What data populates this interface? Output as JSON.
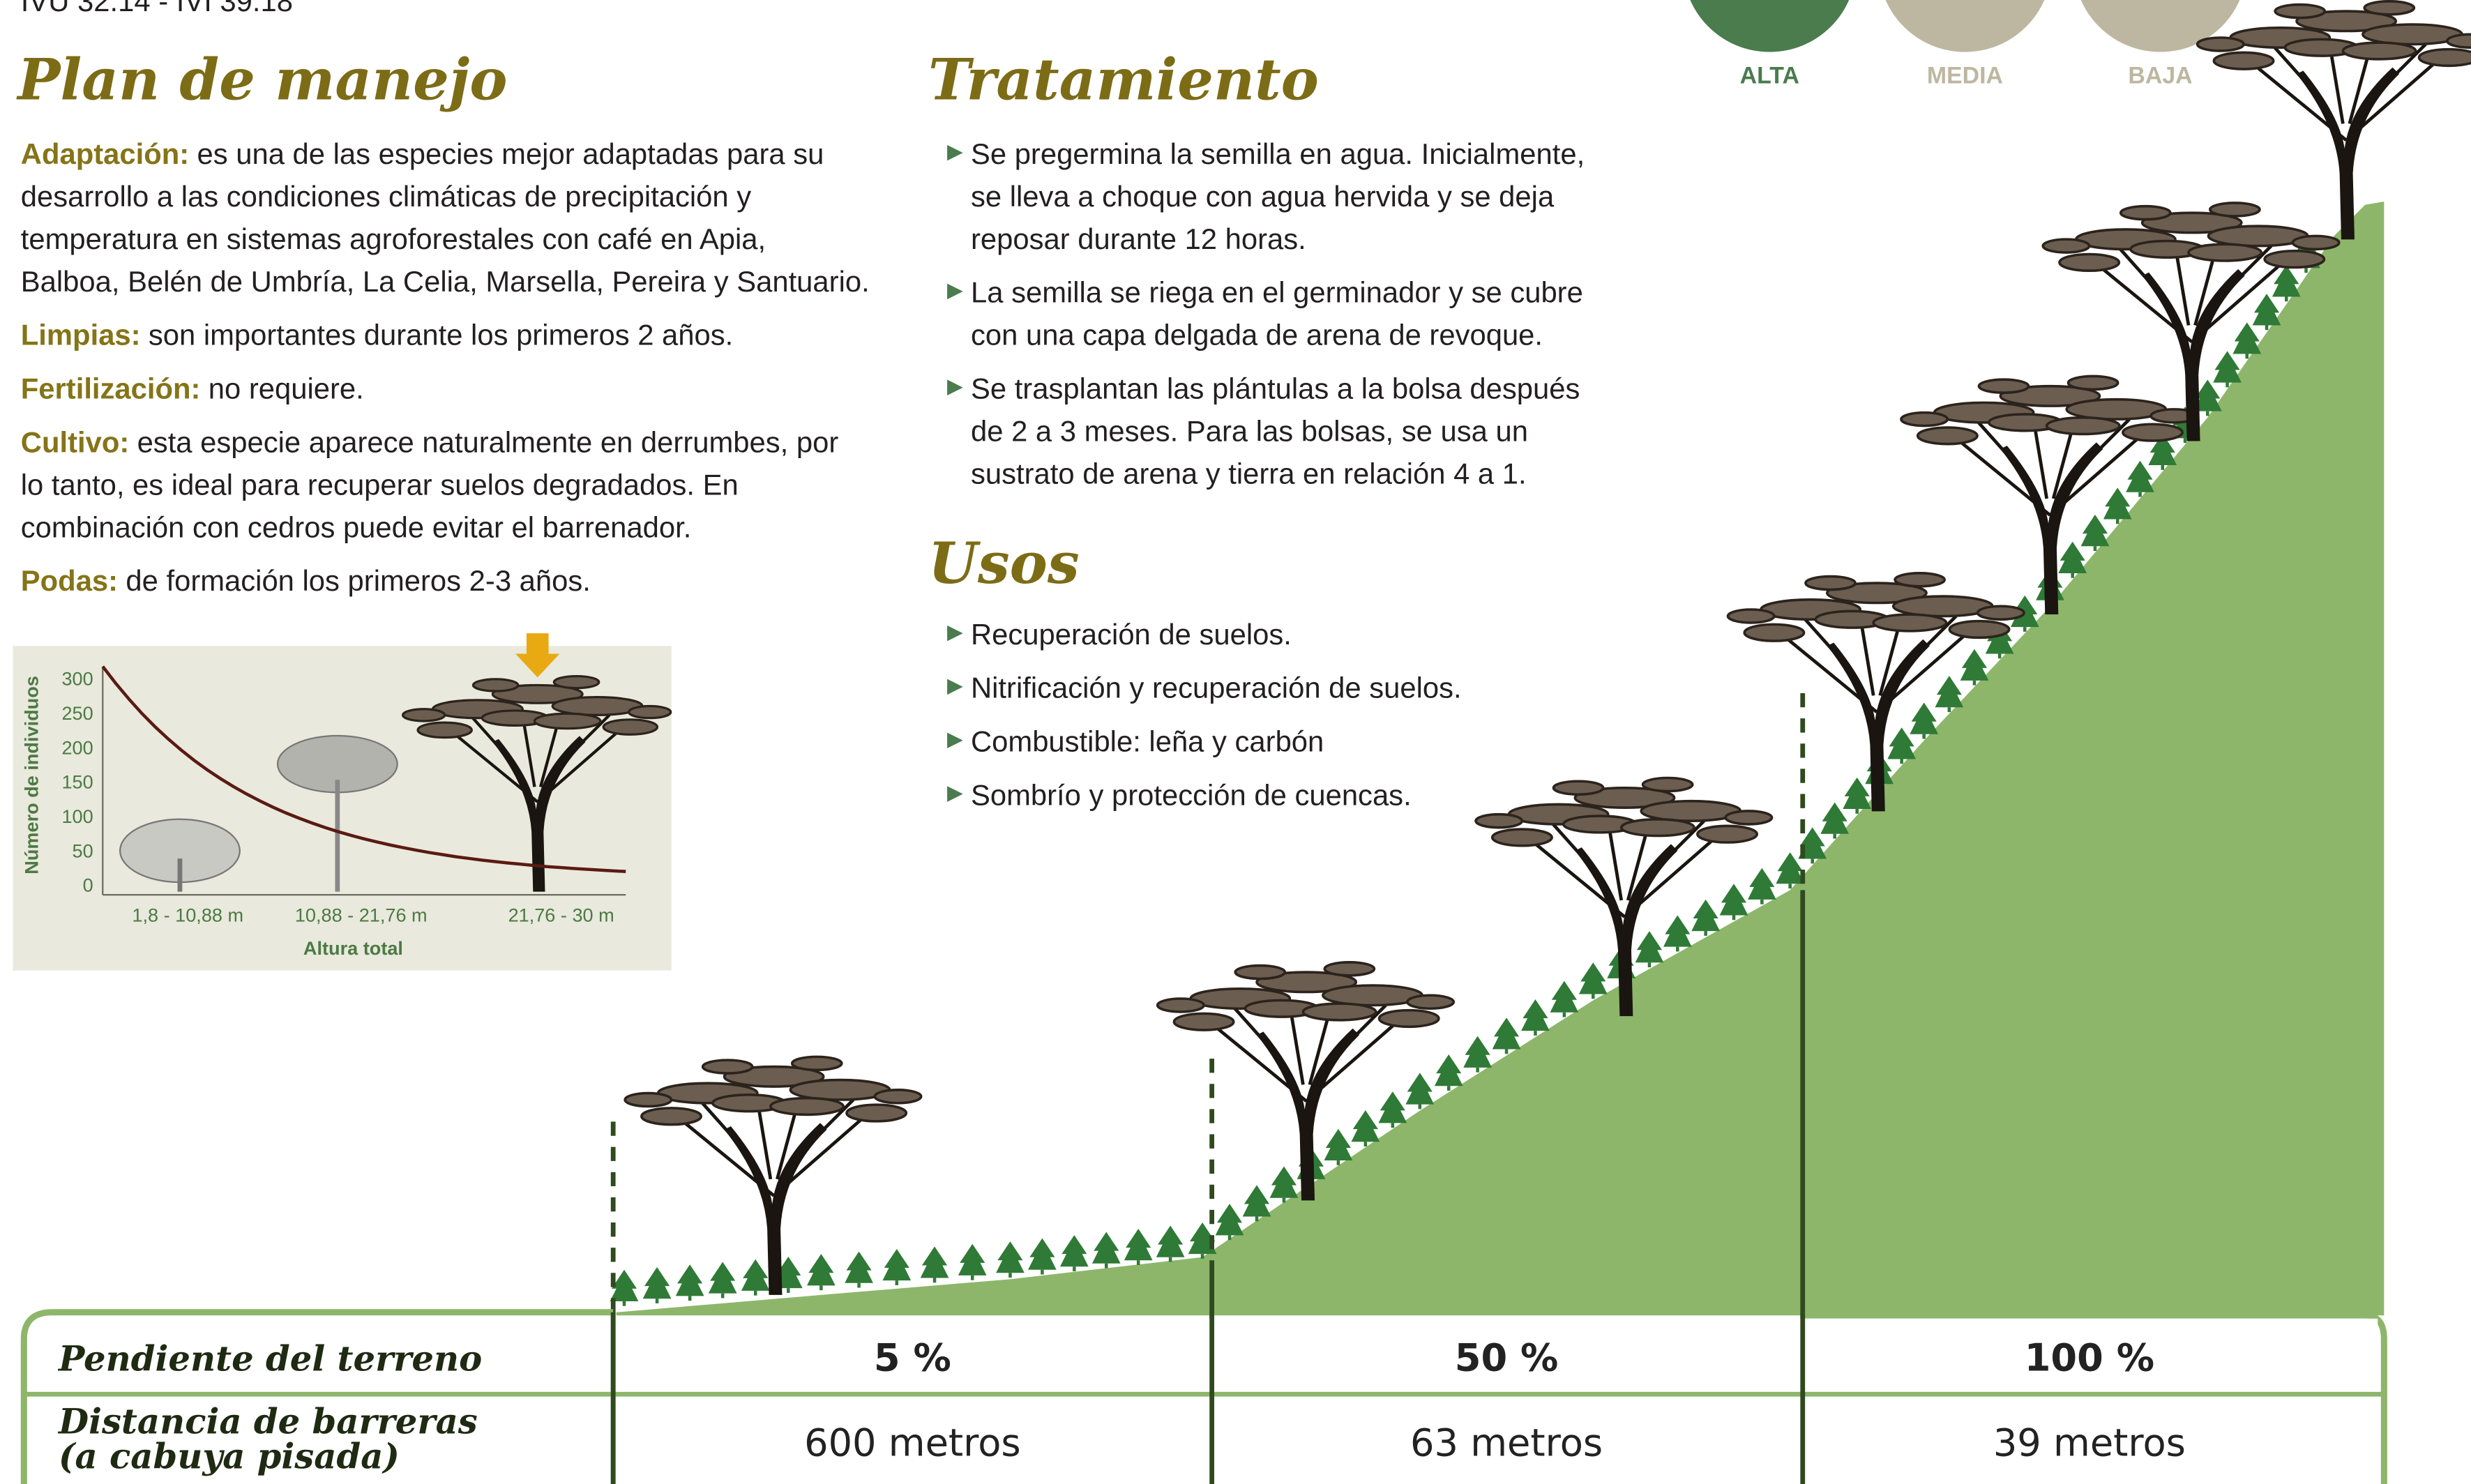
{
  "header": {
    "code": "IVU 32.14 - IVI 39.18"
  },
  "legend": [
    "ALTA",
    "MEDIA",
    "BAJA"
  ],
  "plan": {
    "title": "Plan de manejo",
    "items": [
      {
        "label": "Adaptación:",
        "lines": [
          "es una de las especies mejor adaptadas para su",
          "desarrollo a las condiciones climáticas de precipitación y",
          "temperatura en sistemas agroforestales con café en Apia,",
          "Balboa, Belén de Umbría, La Celia, Marsella, Pereira y Santuario."
        ]
      },
      {
        "label": "Limpias:",
        "lines": [
          "son importantes durante los primeros 2 años."
        ]
      },
      {
        "label": "Fertilización:",
        "lines": [
          "no requiere."
        ]
      },
      {
        "label": "Cultivo:",
        "lines": [
          "esta especie aparece naturalmente en derrumbes, por",
          "lo tanto, es ideal para recuperar suelos degradados. En",
          "combinación con cedros puede evitar el barrenador."
        ]
      },
      {
        "label": "Podas:",
        "lines": [
          "de formación los primeros 2-3 años."
        ]
      }
    ]
  },
  "tratamiento": {
    "title": "Tratamiento",
    "items": [
      [
        "Se pregermina la semilla en agua. Inicialmente,",
        "se lleva a choque con agua hervida y se deja",
        "reposar durante 12 horas."
      ],
      [
        "La semilla se riega en el germinador y se cubre",
        "con una capa delgada de arena de revoque."
      ],
      [
        "Se trasplantan las plántulas a la bolsa después",
        "de 2 a 3 meses. Para las bolsas, se usa un",
        "sustrato de arena y tierra en relación 4 a 1."
      ]
    ]
  },
  "usos": {
    "title": "Usos",
    "items": [
      [
        "Recuperación de suelos."
      ],
      [
        "Nitrificación y recuperación de suelos."
      ],
      [
        "Combustible: leña y carbón"
      ],
      [
        "Sombrío y protección de cuencas."
      ]
    ]
  },
  "mini_chart": {
    "y_label": "Número de individuos",
    "x_label": "Altura total",
    "yticks": [
      0,
      50,
      100,
      150,
      200,
      250,
      300
    ],
    "categories": [
      "1,8 - 10,88 m",
      "10,88 - 21,76 m",
      "21,76 - 30 m"
    ]
  },
  "table": {
    "rows": [
      [
        "Pendiente del terreno",
        "5 %",
        "50 %",
        "100 %"
      ],
      [
        "Distancia de barreras",
        "600 metros",
        "63 metros",
        "39 metros"
      ]
    ],
    "row_note": "(a cabuya pisada)"
  }
}
